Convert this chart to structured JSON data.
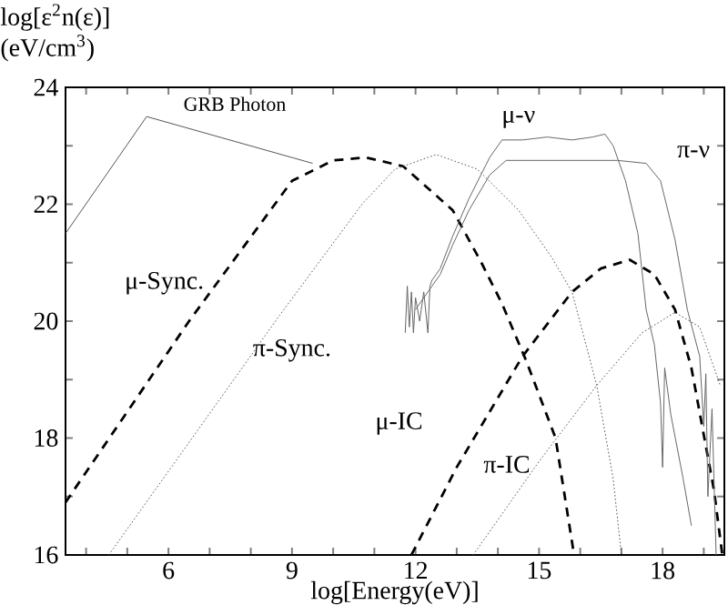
{
  "chart_data": {
    "type": "line",
    "xlabel": "log[Energy(eV)]",
    "ylabel": "log[ε$^{2}$n(ε)] (eV/cm$^{3}$)",
    "xlim": [
      3.5,
      19.5
    ],
    "ylim": [
      16,
      24
    ],
    "xticks": [
      {
        "value": 4,
        "label": null
      },
      {
        "value": 5,
        "label": null
      },
      6,
      {
        "value": 7,
        "label": null
      },
      {
        "value": 8,
        "label": null
      },
      9,
      {
        "value": 10,
        "label": null
      },
      {
        "value": 11,
        "label": null
      },
      12,
      {
        "value": 13,
        "label": null
      },
      {
        "value": 14,
        "label": null
      },
      15,
      {
        "value": 16,
        "label": null
      },
      {
        "value": 17,
        "label": null
      },
      18,
      {
        "value": 19,
        "label": null
      }
    ],
    "yticks": [
      16,
      {
        "value": 17,
        "label": null
      },
      18,
      {
        "value": 19,
        "label": null
      },
      20,
      {
        "value": 21,
        "label": null
      },
      22,
      {
        "value": 23,
        "label": null
      },
      24
    ],
    "grid": false,
    "marker": "none",
    "series": [
      {
        "name": "GRB Photon",
        "color": "#555555",
        "line_style": "solid",
        "x": [
          3.5,
          5.47,
          9.5
        ],
        "values": [
          21.5,
          23.5,
          22.7
        ]
      },
      {
        "name": "μ-Sync.",
        "color": "#000000",
        "line_style": "dashed",
        "x": [
          3.5,
          6.5,
          9.0,
          10.0,
          10.8,
          11.7,
          12.9,
          13.6,
          14.1,
          14.7,
          15.4,
          15.85
        ],
        "values": [
          16.9,
          20.0,
          22.4,
          22.75,
          22.8,
          22.65,
          21.9,
          21.0,
          20.3,
          19.3,
          18.0,
          16.0
        ]
      },
      {
        "name": "π-Sync.",
        "color": "#555555",
        "line_style": "dotted",
        "x": [
          4.55,
          8.7,
          10.7,
          11.5,
          12.5,
          13.5,
          14.5,
          15.3,
          15.8,
          16.4,
          16.8,
          17.0
        ],
        "values": [
          16.0,
          20.1,
          22.0,
          22.6,
          22.85,
          22.6,
          21.9,
          21.1,
          20.5,
          18.9,
          17.3,
          16.0
        ]
      },
      {
        "name": "μ-IC",
        "color": "#000000",
        "line_style": "dashed",
        "x": [
          11.9,
          13.0,
          14.6,
          15.8,
          16.5,
          17.2,
          17.8,
          18.3,
          18.7,
          19.25,
          19.45
        ],
        "values": [
          16.0,
          17.5,
          19.4,
          20.5,
          20.9,
          21.05,
          20.8,
          20.2,
          19.2,
          17.1,
          16.0
        ]
      },
      {
        "name": "π-IC",
        "color": "#555555",
        "line_style": "dotted",
        "x": [
          13.4,
          15.0,
          16.4,
          17.5,
          18.3,
          18.9,
          19.4
        ],
        "values": [
          16.0,
          17.6,
          18.9,
          19.8,
          20.15,
          19.9,
          18.9
        ]
      },
      {
        "name": "μ-ν",
        "color": "#666666",
        "line_style": "solid",
        "x": [
          11.75,
          11.8,
          11.85,
          11.9,
          11.95,
          12.0,
          12.1,
          12.2,
          12.3,
          12.35,
          12.4,
          12.6,
          12.9,
          13.3,
          13.8,
          14.1,
          14.6,
          15.2,
          15.8,
          16.3,
          16.6,
          16.8,
          17.1,
          17.4,
          17.6,
          17.8,
          17.95,
          18.0,
          18.05,
          18.2,
          18.5,
          18.7
        ],
        "values": [
          19.8,
          20.6,
          19.9,
          20.5,
          19.8,
          20.4,
          20.0,
          20.5,
          19.8,
          20.6,
          20.7,
          20.9,
          21.45,
          22.1,
          22.8,
          23.1,
          23.1,
          23.15,
          23.1,
          23.15,
          23.2,
          23.0,
          22.4,
          21.5,
          20.2,
          19.6,
          18.6,
          17.5,
          19.2,
          18.4,
          17.3,
          16.5
        ]
      },
      {
        "name": "π-ν",
        "color": "#666666",
        "line_style": "solid",
        "x": [
          12.0,
          12.3,
          12.6,
          12.9,
          13.3,
          13.8,
          14.2,
          14.8,
          15.5,
          16.2,
          16.9,
          17.6,
          17.95,
          18.3,
          18.6,
          18.9,
          19.0,
          19.05,
          19.1,
          19.2,
          19.3
        ],
        "values": [
          20.2,
          20.5,
          20.8,
          21.3,
          21.9,
          22.5,
          22.75,
          22.75,
          22.75,
          22.75,
          22.75,
          22.7,
          22.4,
          21.4,
          20.2,
          19.4,
          18.2,
          19.1,
          17.0,
          18.5,
          16.0
        ]
      }
    ]
  }
}
